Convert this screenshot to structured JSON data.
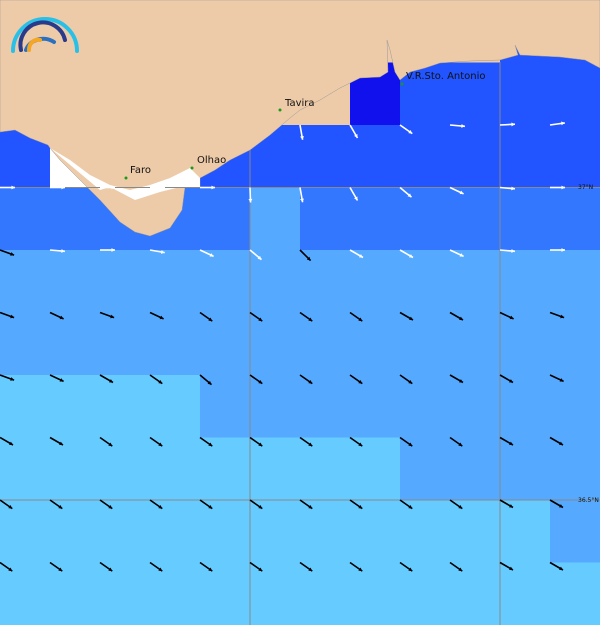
{
  "map": {
    "places": [
      {
        "name": "Faro"
      },
      {
        "name": "Olhao"
      },
      {
        "name": "Tavira"
      },
      {
        "name": "V.R.Sto. Antonio"
      }
    ],
    "lat_labels": [
      "37°N",
      "36.5°N"
    ],
    "colors": {
      "land": "#eecba8",
      "c0": "#1111ee",
      "c1": "#2255ff",
      "c2": "#3377ff",
      "c3": "#55aaff",
      "c4": "#66ccff",
      "gap": "#ffffff"
    },
    "cells": [
      "LLLLLLLLLL11",
      "LLLLLLL01111",
      "1WWW11111111",
      "222223222222",
      "333333333333",
      "333333333333",
      "444433333333",
      "444444443333",
      "444444444443",
      "444444444444"
    ],
    "arrows": [
      {
        "row": 2,
        "cols": [
          6,
          7,
          8,
          9,
          10,
          11
        ],
        "color": "white",
        "angles": [
          80,
          60,
          35,
          5,
          -3,
          -8
        ]
      },
      {
        "row": 3,
        "cols": [
          0,
          1,
          2,
          3,
          4,
          5,
          6,
          7,
          8,
          9,
          10,
          11
        ],
        "color": "white",
        "angles": [
          0,
          0,
          0,
          0,
          0,
          88,
          80,
          60,
          40,
          25,
          5,
          0
        ]
      },
      {
        "row": 4,
        "cols": [
          1,
          2,
          3,
          4,
          5,
          7,
          8,
          9,
          10,
          11
        ],
        "color": "white",
        "angles": [
          5,
          0,
          10,
          25,
          40,
          30,
          30,
          25,
          5,
          0
        ]
      },
      {
        "row": 4,
        "cols": [
          0,
          6
        ],
        "color": "black",
        "angles": [
          20,
          45
        ]
      },
      {
        "row": 5,
        "cols": [
          0,
          1,
          2,
          3,
          4,
          5,
          6,
          7,
          8,
          9,
          10,
          11
        ],
        "color": "black",
        "angles": [
          20,
          25,
          20,
          25,
          35,
          35,
          35,
          35,
          30,
          30,
          25,
          20
        ]
      },
      {
        "row": 6,
        "cols": [
          0,
          1,
          2,
          3,
          4,
          5,
          6,
          7,
          8,
          9,
          10,
          11
        ],
        "color": "black",
        "angles": [
          20,
          25,
          30,
          35,
          40,
          35,
          35,
          35,
          35,
          30,
          30,
          25
        ]
      },
      {
        "row": 7,
        "cols": [
          0,
          1,
          2,
          3,
          4,
          5,
          6,
          7,
          8,
          9,
          10,
          11
        ],
        "color": "black",
        "angles": [
          30,
          30,
          35,
          35,
          35,
          35,
          35,
          35,
          35,
          35,
          30,
          30
        ]
      },
      {
        "row": 8,
        "cols": [
          0,
          1,
          2,
          3,
          4,
          5,
          6,
          7,
          8,
          9,
          10,
          11
        ],
        "color": "black",
        "angles": [
          35,
          35,
          35,
          35,
          35,
          35,
          35,
          35,
          35,
          35,
          30,
          30
        ]
      },
      {
        "row": 9,
        "cols": [
          0,
          1,
          2,
          3,
          4,
          5,
          6,
          7,
          8,
          9,
          10,
          11
        ],
        "color": "black",
        "angles": [
          35,
          35,
          35,
          35,
          35,
          35,
          35,
          35,
          35,
          35,
          30,
          30
        ]
      }
    ]
  }
}
